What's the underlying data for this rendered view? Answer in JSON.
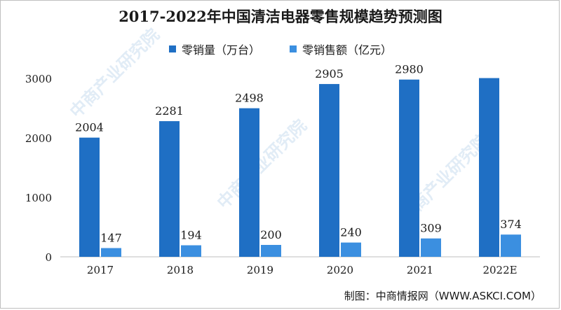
{
  "chart_data": {
    "type": "bar",
    "title": "2017-2022年中国清洁电器零售规模趋势预测图",
    "categories": [
      "2017",
      "2018",
      "2019",
      "2020",
      "2021",
      "2022E"
    ],
    "series": [
      {
        "name": "零销量（万台）",
        "values": [
          2004,
          2281,
          2498,
          2905,
          2980,
          3005
        ],
        "labels": [
          "2004",
          "2281",
          "2498",
          "2905",
          "2980",
          ""
        ],
        "color": "#1f6fc4"
      },
      {
        "name": "零销售额（亿元）",
        "values": [
          147,
          194,
          200,
          240,
          309,
          374
        ],
        "labels": [
          "147",
          "194",
          "200",
          "240",
          "309",
          "374"
        ],
        "color": "#3b8fe0"
      }
    ],
    "ylim": [
      0,
      3000
    ],
    "yticks": [
      "0",
      "1000",
      "2000",
      "3000"
    ],
    "grid": false,
    "legend_position": "top-center"
  },
  "source_text": "制图：中商情报网（WWW.ASKCI.COM）",
  "watermark_text": "中商产业研究院"
}
